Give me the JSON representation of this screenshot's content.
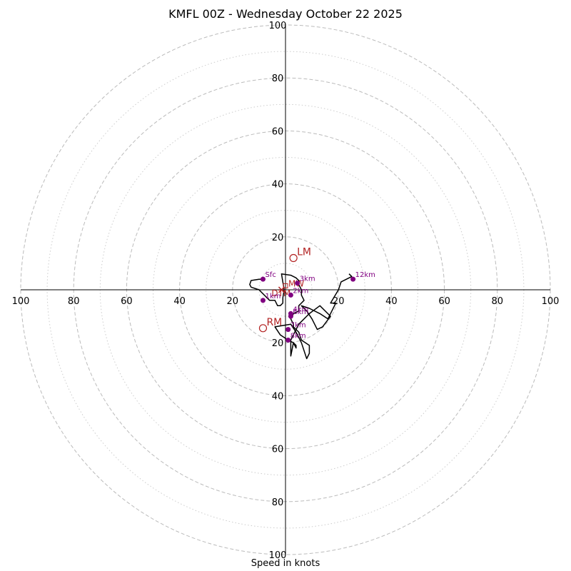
{
  "chart_data": {
    "type": "hodograph",
    "title": "KMFL 00Z - Wednesday October 22 2025",
    "xlabel": "Speed in knots",
    "ylabel": "",
    "axis_range": [
      -100,
      100
    ],
    "rings_major": [
      20,
      40,
      60,
      80,
      100
    ],
    "rings_minor": [
      10,
      30,
      50,
      70,
      90
    ],
    "x_ticks": [
      "100",
      "80",
      "60",
      "40",
      "20",
      "20",
      "40",
      "60",
      "80",
      "100"
    ],
    "y_ticks": [
      "100",
      "80",
      "60",
      "40",
      "20",
      "20",
      "40",
      "60",
      "80",
      "100"
    ],
    "trace": {
      "name": "wind profile",
      "points": [
        [
          -8.5,
          4
        ],
        [
          -10,
          4
        ],
        [
          -13,
          3.5
        ],
        [
          -13.5,
          2
        ],
        [
          -13,
          1
        ],
        [
          -10,
          0
        ],
        [
          -6,
          -4
        ],
        [
          -4,
          -4
        ],
        [
          -3,
          -6
        ],
        [
          -2,
          -6
        ],
        [
          -1,
          -5
        ],
        [
          -1,
          -3
        ],
        [
          -0.5,
          0
        ],
        [
          -1.5,
          6
        ],
        [
          2,
          5.5
        ],
        [
          3,
          5
        ],
        [
          4,
          4.5
        ],
        [
          5,
          3.5
        ],
        [
          5,
          2
        ],
        [
          6,
          0
        ],
        [
          6,
          -2
        ],
        [
          7,
          -4
        ],
        [
          6,
          -5
        ],
        [
          5,
          -6
        ],
        [
          5,
          -8
        ],
        [
          3,
          -9
        ],
        [
          2,
          -11
        ],
        [
          3,
          -13
        ],
        [
          3,
          -14
        ],
        [
          4,
          -15
        ],
        [
          5,
          -16
        ],
        [
          6,
          -19
        ],
        [
          9,
          -21
        ],
        [
          9,
          -24
        ],
        [
          8,
          -26
        ],
        [
          6,
          -20
        ],
        [
          4,
          -16
        ],
        [
          2,
          -13
        ],
        [
          -4,
          -14
        ],
        [
          -2,
          -17
        ],
        [
          1,
          -19
        ],
        [
          3,
          -20
        ],
        [
          4,
          -21
        ],
        [
          4,
          -22
        ],
        [
          3,
          -20
        ],
        [
          2,
          -25
        ],
        [
          2,
          -19
        ],
        [
          5,
          -13
        ],
        [
          9,
          -9
        ],
        [
          13,
          -6
        ],
        [
          17,
          -10
        ],
        [
          14,
          -14
        ],
        [
          12,
          -15
        ],
        [
          10,
          -11
        ],
        [
          8,
          -8
        ],
        [
          6,
          -6
        ],
        [
          9,
          -7
        ],
        [
          13,
          -9
        ],
        [
          16,
          -11
        ],
        [
          19,
          -5
        ],
        [
          17,
          -5
        ],
        [
          20,
          0
        ],
        [
          21,
          3
        ],
        [
          25,
          5
        ],
        [
          24,
          6
        ]
      ]
    },
    "height_markers": [
      {
        "label": "Sfc",
        "u": -8.5,
        "v": 4
      },
      {
        "label": "1km",
        "u": -8.5,
        "v": -4
      },
      {
        "label": "2km",
        "u": 2,
        "v": -2
      },
      {
        "label": "3km",
        "u": 4.5,
        "v": 2.5
      },
      {
        "label": "4km",
        "u": 2,
        "v": -9
      },
      {
        "label": "6km",
        "u": 2,
        "v": -10
      },
      {
        "label": "7km",
        "u": 1,
        "v": -15
      },
      {
        "label": "8km",
        "u": 1,
        "v": -19
      },
      {
        "label": "12km",
        "u": 25.5,
        "v": 4
      }
    ],
    "storm_motions": [
      {
        "label": "LM",
        "u": 3,
        "v": 12
      },
      {
        "label": "RM",
        "u": -8.5,
        "v": -14.5
      },
      {
        "label": "MW",
        "u": 0,
        "v": 1.5
      },
      {
        "label": "DTM",
        "u": -1.5,
        "v": 0
      }
    ]
  },
  "colors": {
    "trace": "#000000",
    "markers": "#800080",
    "storm_motion": "#b22222",
    "grid": "#bbbbbb",
    "axes": "#000000"
  }
}
